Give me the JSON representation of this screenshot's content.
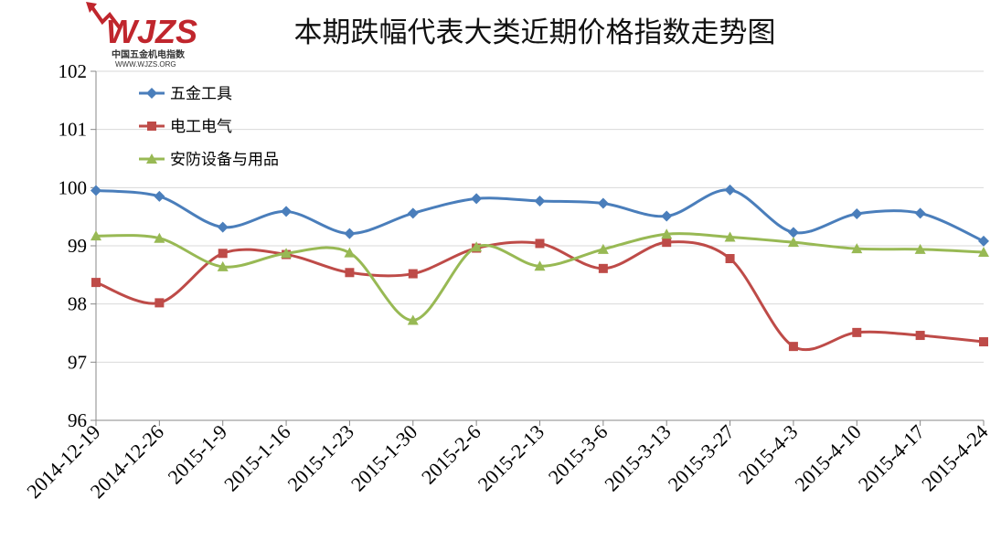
{
  "logo": {
    "mark": "WJZS",
    "name": "中国五金机电指数",
    "url": "WWW.WJZS.ORG"
  },
  "chart_data": {
    "type": "line",
    "title": "本期跌幅代表大类近期价格指数走势图",
    "xlabel": "",
    "ylabel": "",
    "ylim": [
      96,
      102
    ],
    "yticks": [
      96,
      97,
      98,
      99,
      100,
      101,
      102
    ],
    "grid": true,
    "legend_position": "top-left",
    "categories": [
      "2014-12-19",
      "2014-12-26",
      "2015-1-9",
      "2015-1-16",
      "2015-1-23",
      "2015-1-30",
      "2015-2-6",
      "2015-2-13",
      "2015-3-6",
      "2015-3-13",
      "2015-3-27",
      "2015-4-3",
      "2015-4-10",
      "2015-4-17",
      "2015-4-24"
    ],
    "series": [
      {
        "name": "五金工具",
        "color": "#4a7ebb",
        "marker": "diamond",
        "values": [
          99.95,
          99.85,
          99.32,
          99.59,
          99.21,
          99.56,
          99.81,
          99.77,
          99.73,
          99.51,
          99.96,
          99.23,
          99.55,
          99.56,
          99.08
        ]
      },
      {
        "name": "电工电气",
        "color": "#be4b48",
        "marker": "square",
        "values": [
          98.37,
          98.02,
          98.87,
          98.85,
          98.54,
          98.52,
          98.96,
          99.04,
          98.61,
          99.06,
          98.78,
          97.27,
          97.51,
          97.46,
          97.35
        ]
      },
      {
        "name": "安防设备与用品",
        "color": "#98b954",
        "marker": "triangle",
        "values": [
          99.17,
          99.13,
          98.64,
          98.87,
          98.88,
          97.72,
          98.98,
          98.65,
          98.94,
          99.2,
          99.15,
          99.06,
          98.95,
          98.94,
          98.89
        ]
      }
    ]
  }
}
